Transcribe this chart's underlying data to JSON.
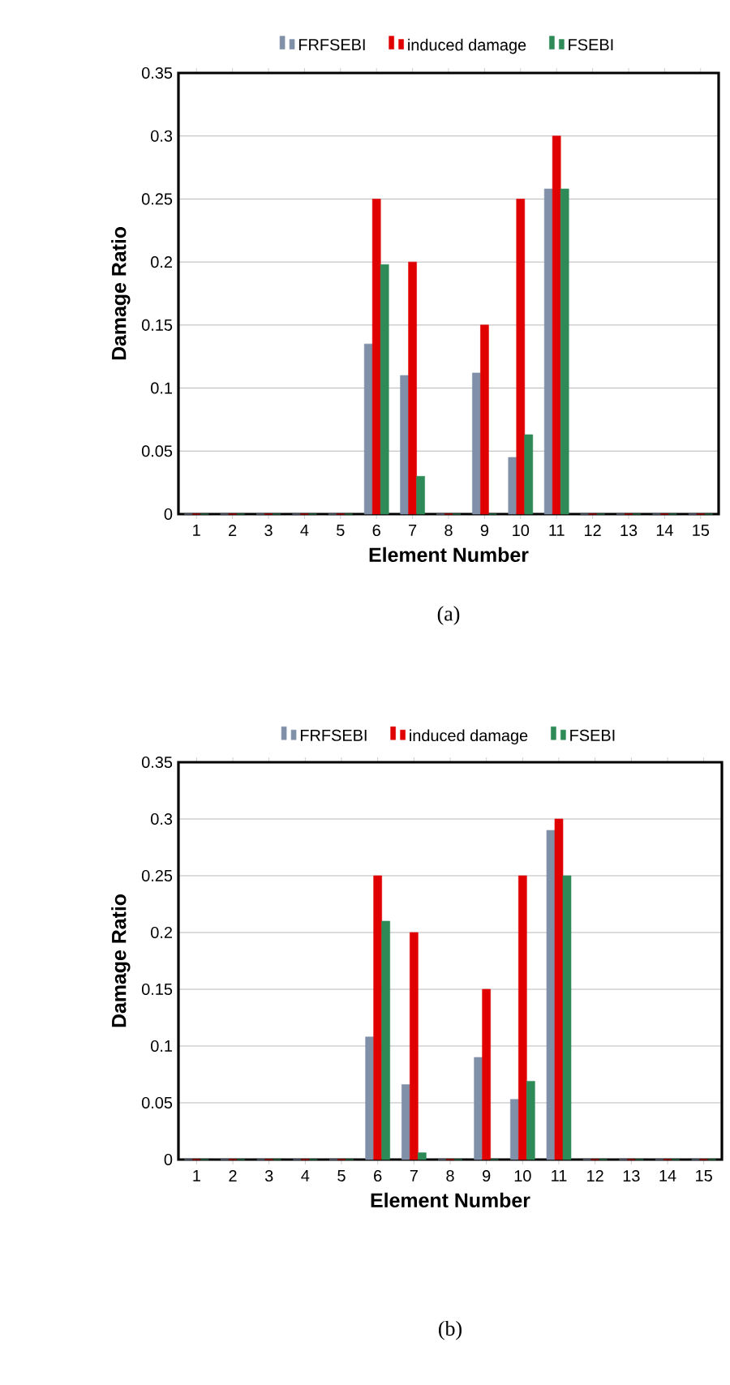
{
  "chart_data": [
    {
      "type": "bar",
      "categories": [
        "1",
        "2",
        "3",
        "4",
        "5",
        "6",
        "7",
        "8",
        "9",
        "10",
        "11",
        "12",
        "13",
        "14",
        "15"
      ],
      "xlabel": "Element Number",
      "ylabel": "Damage Ratio",
      "ylim": [
        0,
        0.35
      ],
      "yticks": [
        0,
        0.05,
        0.1,
        0.15,
        0.2,
        0.25,
        0.3,
        0.35
      ],
      "grid": "y",
      "legend": "top",
      "annotations": [
        "(a)"
      ],
      "series": [
        {
          "name": "FRFSEBI",
          "color": "#8090a8",
          "values": [
            0,
            0,
            0,
            0,
            0,
            0.135,
            0.11,
            0,
            0.112,
            0.045,
            0.258,
            0,
            0,
            0,
            0
          ]
        },
        {
          "name": "induced damage",
          "color": "#e00000",
          "values": [
            0,
            0,
            0,
            0,
            0,
            0.25,
            0.2,
            0,
            0.15,
            0.25,
            0.3,
            0,
            0,
            0,
            0
          ]
        },
        {
          "name": "FSEBI",
          "color": "#2e8b57",
          "values": [
            0,
            0,
            0,
            0,
            0,
            0.198,
            0.03,
            0,
            0,
            0.063,
            0.258,
            0,
            0,
            0,
            0
          ]
        }
      ]
    },
    {
      "type": "bar",
      "categories": [
        "1",
        "2",
        "3",
        "4",
        "5",
        "6",
        "7",
        "8",
        "9",
        "10",
        "11",
        "12",
        "13",
        "14",
        "15"
      ],
      "xlabel": "Element Number",
      "ylabel": "Damage Ratio",
      "ylim": [
        0,
        0.35
      ],
      "yticks": [
        0,
        0.05,
        0.1,
        0.15,
        0.2,
        0.25,
        0.3,
        0.35
      ],
      "grid": "y",
      "legend": "top",
      "annotations": [
        "(b)"
      ],
      "series": [
        {
          "name": "FRFSEBI",
          "color": "#8090a8",
          "values": [
            0,
            0,
            0,
            0,
            0,
            0.108,
            0.066,
            0,
            0.09,
            0.053,
            0.29,
            0,
            0,
            0,
            0
          ]
        },
        {
          "name": "induced damage",
          "color": "#e00000",
          "values": [
            0,
            0,
            0,
            0,
            0,
            0.25,
            0.2,
            0,
            0.15,
            0.25,
            0.3,
            0,
            0,
            0,
            0
          ]
        },
        {
          "name": "FSEBI",
          "color": "#2e8b57",
          "values": [
            0,
            0,
            0,
            0,
            0,
            0.21,
            0.006,
            0,
            0,
            0.069,
            0.25,
            0,
            0,
            0,
            0
          ]
        }
      ]
    }
  ]
}
